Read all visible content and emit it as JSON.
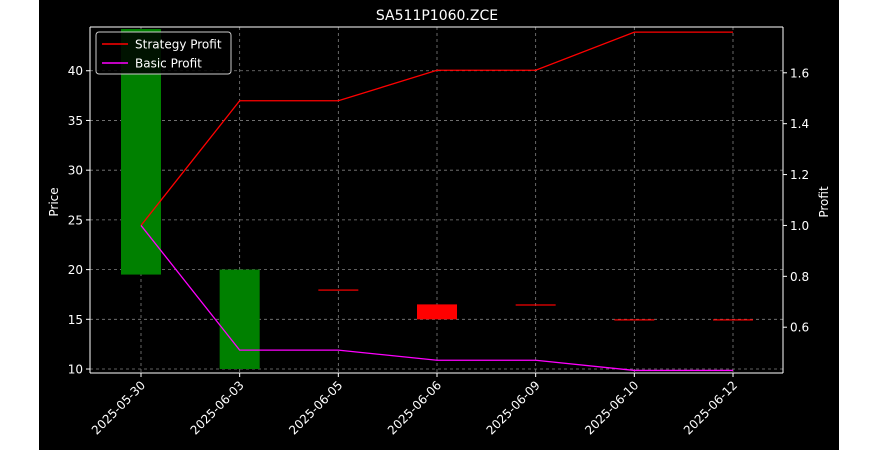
{
  "chart_data": {
    "type": "candlestick",
    "title": "SA511P1060.ZCE",
    "ylabel_left": "Price",
    "ylabel_right": "Profit",
    "categories": [
      "2025-05-30",
      "2025-06-03",
      "2025-06-05",
      "2025-06-06",
      "2025-06-09",
      "2025-06-10",
      "2025-06-12"
    ],
    "price_ylim": [
      9.6,
      44.4
    ],
    "price_ticks": [
      10,
      15,
      20,
      25,
      30,
      35,
      40
    ],
    "profit_ylim": [
      0.42,
      1.78
    ],
    "profit_ticks": [
      0.6,
      0.8,
      1.0,
      1.2,
      1.4,
      1.6
    ],
    "profit_tick_labels": [
      "0.6",
      "0.8",
      "1.0",
      "1.2",
      "1.4",
      "1.6"
    ],
    "candles": [
      {
        "open": 19.5,
        "close": 44.2,
        "color": "#008000"
      },
      {
        "open": 10.0,
        "close": 20.0,
        "color": "#008000"
      },
      {
        "open": 18.0,
        "close": 18.0,
        "color": "#ff0000"
      },
      {
        "open": 16.5,
        "close": 15.0,
        "color": "#ff0000"
      },
      {
        "open": 16.5,
        "close": 16.5,
        "color": "#ff0000"
      },
      {
        "open": 15.0,
        "close": 15.0,
        "color": "#ff0000"
      },
      {
        "open": 15.0,
        "close": 15.0,
        "color": "#ff0000"
      }
    ],
    "series": [
      {
        "name": "Strategy Profit",
        "color": "#ff0000",
        "values": [
          1.0,
          1.49,
          1.49,
          1.61,
          1.61,
          1.76,
          1.76
        ]
      },
      {
        "name": "Basic Profit",
        "color": "#ff00ff",
        "values": [
          1.0,
          0.51,
          0.51,
          0.47,
          0.47,
          0.43,
          0.43
        ]
      }
    ],
    "legend": "top-left",
    "grid": true,
    "colors": {
      "background": "#000000",
      "axes": "#ffffff",
      "grid": "#808080"
    }
  }
}
